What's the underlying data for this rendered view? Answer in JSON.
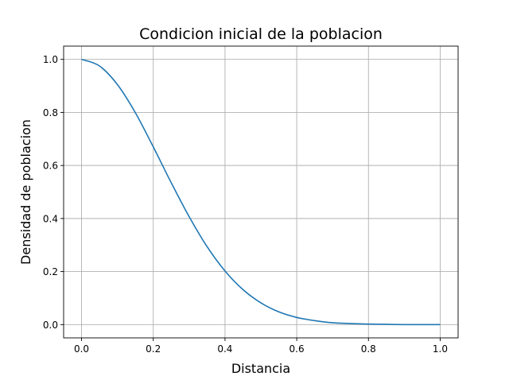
{
  "chart_data": {
    "type": "line",
    "title": "Condicion inicial de la poblacion",
    "xlabel": "Distancia",
    "ylabel": "Densidad de poblacion",
    "xlim": [
      -0.05,
      1.05
    ],
    "ylim": [
      -0.05,
      1.05
    ],
    "xticks": [
      0.0,
      0.2,
      0.4,
      0.6,
      0.8,
      1.0
    ],
    "xtick_labels": [
      "0.0",
      "0.2",
      "0.4",
      "0.6",
      "0.8",
      "1.0"
    ],
    "yticks": [
      0.0,
      0.2,
      0.4,
      0.6,
      0.8,
      1.0
    ],
    "ytick_labels": [
      "0.0",
      "0.2",
      "0.4",
      "0.6",
      "0.8",
      "1.0"
    ],
    "grid": true,
    "series_color": "#1f77b4",
    "series": [
      {
        "x": [
          0.0,
          0.05,
          0.1,
          0.15,
          0.2,
          0.25,
          0.3,
          0.35,
          0.4,
          0.45,
          0.5,
          0.55,
          0.6,
          0.65,
          0.7,
          0.75,
          0.8,
          0.85,
          0.9,
          0.95,
          1.0
        ],
        "values": [
          1.0,
          0.975,
          0.905,
          0.799,
          0.67,
          0.535,
          0.407,
          0.294,
          0.202,
          0.132,
          0.082,
          0.048,
          0.027,
          0.015,
          0.007,
          0.004,
          0.002,
          0.001,
          0.0,
          0.0,
          0.0
        ]
      }
    ]
  }
}
